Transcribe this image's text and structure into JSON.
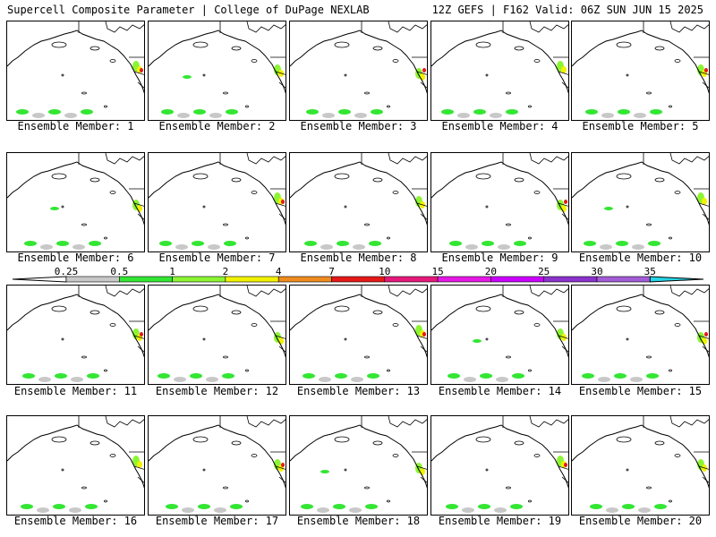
{
  "header": {
    "title": "Supercell Composite Parameter | College of DuPage NEXLAB",
    "run_info": "12Z GEFS | F162 Valid: 06Z SUN JUN 15 2025"
  },
  "colors": {
    "land": "#ffffff",
    "lines": "#000000",
    "levels": [
      "#c8c8c8",
      "#33e633",
      "#8cf533",
      "#f2f200",
      "#f08c1f",
      "#e61919",
      "#e6197a",
      "#e619e6",
      "#cc00ff",
      "#8c33cc",
      "#a35cd6",
      "#26d6e6"
    ]
  },
  "colorbar": {
    "ticks": [
      "0.25",
      "0.5",
      "1",
      "2",
      "4",
      "7",
      "10",
      "15",
      "20",
      "25",
      "30",
      "35"
    ]
  },
  "members": [
    {
      "label": "Ensemble Member: 1"
    },
    {
      "label": "Ensemble Member: 2"
    },
    {
      "label": "Ensemble Member: 3"
    },
    {
      "label": "Ensemble Member: 4"
    },
    {
      "label": "Ensemble Member: 5"
    },
    {
      "label": "Ensemble Member: 6"
    },
    {
      "label": "Ensemble Member: 7"
    },
    {
      "label": "Ensemble Member: 8"
    },
    {
      "label": "Ensemble Member: 9"
    },
    {
      "label": "Ensemble Member: 10"
    },
    {
      "label": "Ensemble Member: 11"
    },
    {
      "label": "Ensemble Member: 12"
    },
    {
      "label": "Ensemble Member: 13"
    },
    {
      "label": "Ensemble Member: 14"
    },
    {
      "label": "Ensemble Member: 15"
    },
    {
      "label": "Ensemble Member: 16"
    },
    {
      "label": "Ensemble Member: 17"
    },
    {
      "label": "Ensemble Member: 18"
    },
    {
      "label": "Ensemble Member: 19"
    },
    {
      "label": "Ensemble Member: 20"
    }
  ]
}
